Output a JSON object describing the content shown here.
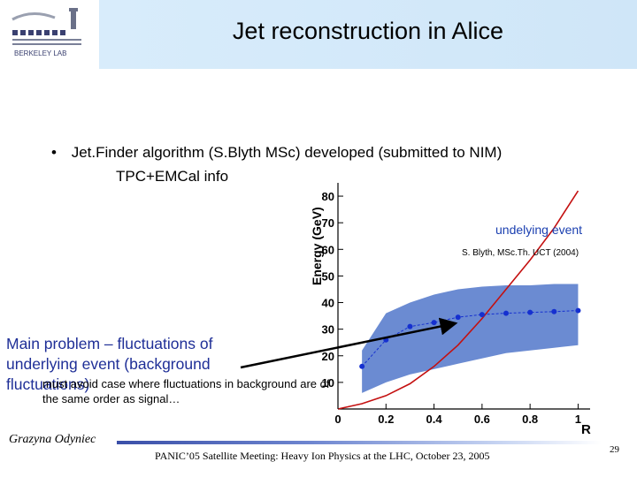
{
  "header": {
    "title": "Jet reconstruction in Alice",
    "logo_text": "BERKELEY LAB"
  },
  "content": {
    "bullet_symbol": "•",
    "bullet_text": "Jet.Finder algorithm (S.Blyth MSc) developed (submitted to NIM)",
    "bullet_line2": "TPC+EMCal info"
  },
  "annotations": {
    "underlying_event": "undelying event",
    "reference": "S. Blyth, MSc.Th. UCT (2004)",
    "main_problem": "Main problem – fluctuations of underlying event (background fluctuations)",
    "must_avoid": "must avoid case where fluctuations in background are of the same order as signal…"
  },
  "chart_data": {
    "type": "line",
    "ylabel": "Energy (GeV)",
    "xlabel": "R",
    "xlim": [
      0,
      1.05
    ],
    "ylim": [
      0,
      85
    ],
    "x_ticks": [
      "0",
      "0.2",
      "0.4",
      "0.6",
      "0.8",
      "1"
    ],
    "y_ticks": [
      "10",
      "20",
      "30",
      "40",
      "50",
      "60",
      "70",
      "80"
    ],
    "band": {
      "x": [
        0.1,
        0.2,
        0.3,
        0.4,
        0.5,
        0.6,
        0.7,
        0.8,
        0.9,
        1.0
      ],
      "upper": [
        22,
        36,
        40,
        43,
        45,
        46,
        46.5,
        46.5,
        47,
        47
      ],
      "lower": [
        6,
        10,
        13,
        15,
        17,
        19,
        21,
        22,
        23,
        24
      ]
    },
    "series": [
      {
        "x": [
          0.1,
          0.2,
          0.3,
          0.4,
          0.5,
          0.6,
          0.7,
          0.8,
          0.9,
          1.0
        ],
        "values": [
          16,
          26,
          31,
          32.5,
          34.5,
          35.5,
          36,
          36.3,
          36.6,
          37
        ],
        "color": "#1530d0"
      },
      {
        "x": [
          0.0,
          0.1,
          0.2,
          0.3,
          0.4,
          0.5,
          0.6,
          0.7,
          0.8,
          0.9,
          1.0
        ],
        "values": [
          0,
          2,
          5,
          9.5,
          16,
          24,
          34,
          45,
          56,
          68,
          82
        ],
        "color": "#c41010"
      }
    ]
  },
  "footer": {
    "author": "Grazyna Odyniec",
    "text": "PANIC’05 Satellite Meeting: Heavy Ion Physics at the LHC, October 23, 2005",
    "page": "29"
  },
  "colors": {
    "band": "#6b8bd2",
    "arrow": "#000000",
    "title_blue": "#1f2f97"
  }
}
